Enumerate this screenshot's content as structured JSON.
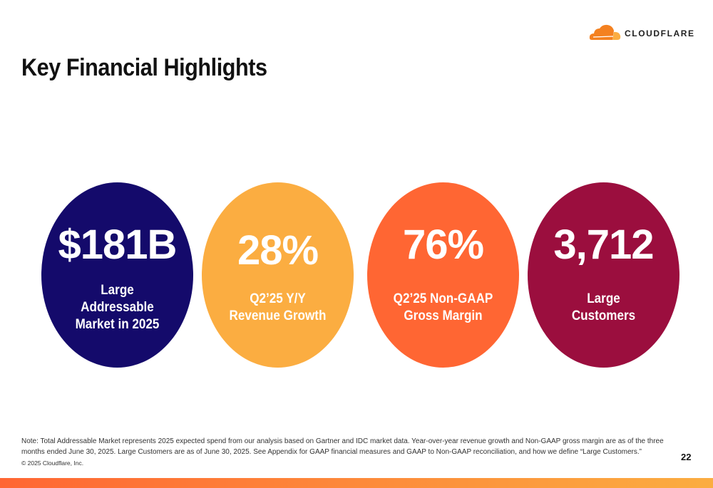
{
  "brand": {
    "name": "CLOUDFLARE",
    "colors": {
      "orange": "#f48120",
      "light_orange": "#fbad41"
    }
  },
  "title": "Key Financial Highlights",
  "highlights": [
    {
      "value": "$181B",
      "label_lines": [
        "Large",
        "Addressable",
        "Market in 2025"
      ],
      "color": "#140a6b"
    },
    {
      "value": "28%",
      "label_lines": [
        "Q2’25 Y/Y",
        "Revenue Growth"
      ],
      "color": "#fbad41"
    },
    {
      "value": "76%",
      "label_lines": [
        "Q2’25 Non-GAAP",
        "Gross Margin"
      ],
      "color": "#ff6633"
    },
    {
      "value": "3,712",
      "label_lines": [
        "Large",
        "Customers"
      ],
      "color": "#9b0e3e"
    }
  ],
  "footer": {
    "note": "Note: Total Addressable Market represents 2025 expected spend from our analysis based on Gartner and IDC market data. Year-over-year revenue growth and Non-GAAP gross margin are as of the three months ended June 30, 2025. Large Customers are as of June 30, 2025. See Appendix for GAAP financial measures and GAAP to Non-GAAP reconciliation, and how we define “Large Customers.”",
    "copyright": "© 2025 Cloudflare, Inc.",
    "page_number": "22"
  }
}
